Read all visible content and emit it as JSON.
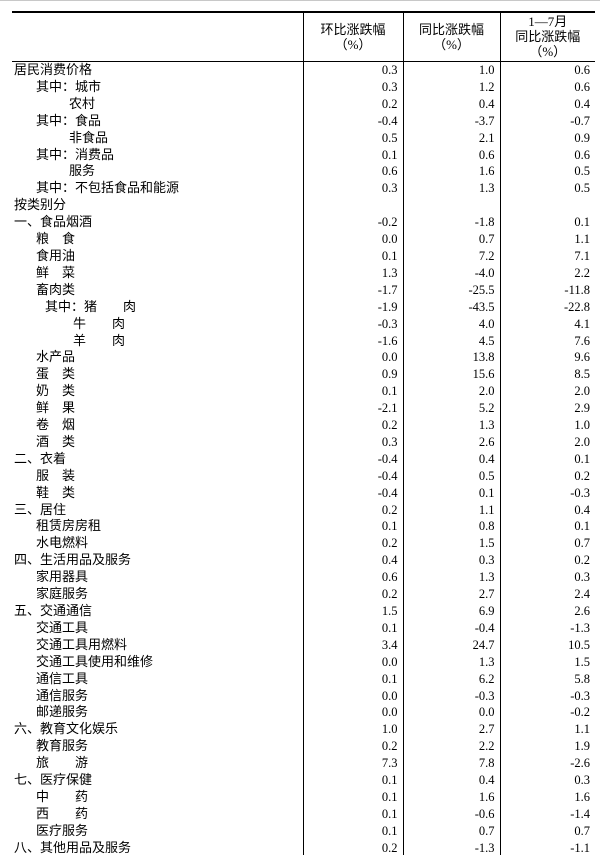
{
  "page": {
    "top_edge_color": "#c8c8c8",
    "rule_color": "#000000",
    "text_color": "#000000"
  },
  "table": {
    "columns": [
      {
        "id": "category",
        "line1": "",
        "line2": ""
      },
      {
        "id": "mom",
        "line1": "环比涨跌幅",
        "line2": "（%）"
      },
      {
        "id": "yoy",
        "line1": "同比涨跌幅",
        "line2": "（%）"
      },
      {
        "id": "ytd",
        "line1": "1—7月",
        "line2": "同比涨跌幅（%）"
      }
    ],
    "rows": [
      {
        "label": "居民消费价格",
        "indent": 0,
        "v": [
          "0.3",
          "1.0",
          "0.6"
        ]
      },
      {
        "label": "其中：城市",
        "indent": 1,
        "v": [
          "0.3",
          "1.2",
          "0.6"
        ]
      },
      {
        "label": "农村",
        "indent": 2,
        "v": [
          "0.2",
          "0.4",
          "0.4"
        ]
      },
      {
        "label": "其中：食品",
        "indent": 1,
        "v": [
          "-0.4",
          "-3.7",
          "-0.7"
        ]
      },
      {
        "label": "非食品",
        "indent": 2,
        "v": [
          "0.5",
          "2.1",
          "0.9"
        ]
      },
      {
        "label": "其中：消费品",
        "indent": 1,
        "v": [
          "0.1",
          "0.6",
          "0.6"
        ]
      },
      {
        "label": "服务",
        "indent": 2,
        "v": [
          "0.6",
          "1.6",
          "0.5"
        ]
      },
      {
        "label": "其中：不包括食品和能源",
        "indent": 1,
        "v": [
          "0.3",
          "1.3",
          "0.5"
        ]
      },
      {
        "label": "按类别分",
        "indent": 0,
        "v": [
          "",
          "",
          ""
        ]
      },
      {
        "label": "一、食品烟酒",
        "indent": 0,
        "v": [
          "-0.2",
          "-1.8",
          "0.1"
        ]
      },
      {
        "label": "粮　食",
        "indent": 1,
        "v": [
          "0.0",
          "0.7",
          "1.1"
        ]
      },
      {
        "label": "食用油",
        "indent": 1,
        "v": [
          "0.1",
          "7.2",
          "7.1"
        ]
      },
      {
        "label": "鲜　菜",
        "indent": 1,
        "v": [
          "1.3",
          "-4.0",
          "2.2"
        ]
      },
      {
        "label": "畜肉类",
        "indent": 1,
        "v": [
          "-1.7",
          "-25.5",
          "-11.8"
        ]
      },
      {
        "label": "其中：猪　　肉",
        "indent": 3,
        "v": [
          "-1.9",
          "-43.5",
          "-22.8"
        ]
      },
      {
        "label": "牛　　肉",
        "indent": 4,
        "v": [
          "-0.3",
          "4.0",
          "4.1"
        ]
      },
      {
        "label": "羊　　肉",
        "indent": 4,
        "v": [
          "-1.6",
          "4.5",
          "7.6"
        ]
      },
      {
        "label": "水产品",
        "indent": 1,
        "v": [
          "0.0",
          "13.8",
          "9.6"
        ]
      },
      {
        "label": "蛋　类",
        "indent": 1,
        "v": [
          "0.9",
          "15.6",
          "8.5"
        ]
      },
      {
        "label": "奶　类",
        "indent": 1,
        "v": [
          "0.1",
          "2.0",
          "2.0"
        ]
      },
      {
        "label": "鲜　果",
        "indent": 1,
        "v": [
          "-2.1",
          "5.2",
          "2.9"
        ]
      },
      {
        "label": "卷　烟",
        "indent": 1,
        "v": [
          "0.2",
          "1.3",
          "1.0"
        ]
      },
      {
        "label": "酒　类",
        "indent": 1,
        "v": [
          "0.3",
          "2.6",
          "2.0"
        ]
      },
      {
        "label": "二、衣着",
        "indent": 0,
        "v": [
          "-0.4",
          "0.4",
          "0.1"
        ]
      },
      {
        "label": "服　装",
        "indent": 1,
        "v": [
          "-0.4",
          "0.5",
          "0.2"
        ]
      },
      {
        "label": "鞋　类",
        "indent": 1,
        "v": [
          "-0.4",
          "0.1",
          "-0.3"
        ]
      },
      {
        "label": "三、居住",
        "indent": 0,
        "v": [
          "0.2",
          "1.1",
          "0.4"
        ]
      },
      {
        "label": "租赁房房租",
        "indent": 1,
        "v": [
          "0.1",
          "0.8",
          "0.1"
        ]
      },
      {
        "label": "水电燃料",
        "indent": 1,
        "v": [
          "0.2",
          "1.5",
          "0.7"
        ]
      },
      {
        "label": "四、生活用品及服务",
        "indent": 0,
        "v": [
          "0.4",
          "0.3",
          "0.2"
        ]
      },
      {
        "label": "家用器具",
        "indent": 1,
        "v": [
          "0.6",
          "1.3",
          "0.3"
        ]
      },
      {
        "label": "家庭服务",
        "indent": 1,
        "v": [
          "0.2",
          "2.7",
          "2.4"
        ]
      },
      {
        "label": "五、交通通信",
        "indent": 0,
        "v": [
          "1.5",
          "6.9",
          "2.6"
        ]
      },
      {
        "label": "交通工具",
        "indent": 1,
        "v": [
          "0.1",
          "-0.4",
          "-1.3"
        ]
      },
      {
        "label": "交通工具用燃料",
        "indent": 1,
        "v": [
          "3.4",
          "24.7",
          "10.5"
        ]
      },
      {
        "label": "交通工具使用和维修",
        "indent": 1,
        "v": [
          "0.0",
          "1.3",
          "1.5"
        ]
      },
      {
        "label": "通信工具",
        "indent": 1,
        "v": [
          "0.1",
          "6.2",
          "5.8"
        ]
      },
      {
        "label": "通信服务",
        "indent": 1,
        "v": [
          "0.0",
          "-0.3",
          "-0.3"
        ]
      },
      {
        "label": "邮递服务",
        "indent": 1,
        "v": [
          "0.0",
          "0.0",
          "-0.2"
        ]
      },
      {
        "label": "六、教育文化娱乐",
        "indent": 0,
        "v": [
          "1.0",
          "2.7",
          "1.1"
        ]
      },
      {
        "label": "教育服务",
        "indent": 1,
        "v": [
          "0.2",
          "2.2",
          "1.9"
        ]
      },
      {
        "label": "旅　　游",
        "indent": 1,
        "v": [
          "7.3",
          "7.8",
          "-2.6"
        ]
      },
      {
        "label": "七、医疗保健",
        "indent": 0,
        "v": [
          "0.1",
          "0.4",
          "0.3"
        ]
      },
      {
        "label": "中　　药",
        "indent": 1,
        "v": [
          "0.1",
          "1.6",
          "1.6"
        ]
      },
      {
        "label": "西　　药",
        "indent": 1,
        "v": [
          "0.1",
          "-0.6",
          "-1.4"
        ]
      },
      {
        "label": "医疗服务",
        "indent": 1,
        "v": [
          "0.1",
          "0.7",
          "0.7"
        ]
      },
      {
        "label": "八、其他用品及服务",
        "indent": 0,
        "v": [
          "0.2",
          "-1.3",
          "-1.1"
        ]
      }
    ]
  }
}
